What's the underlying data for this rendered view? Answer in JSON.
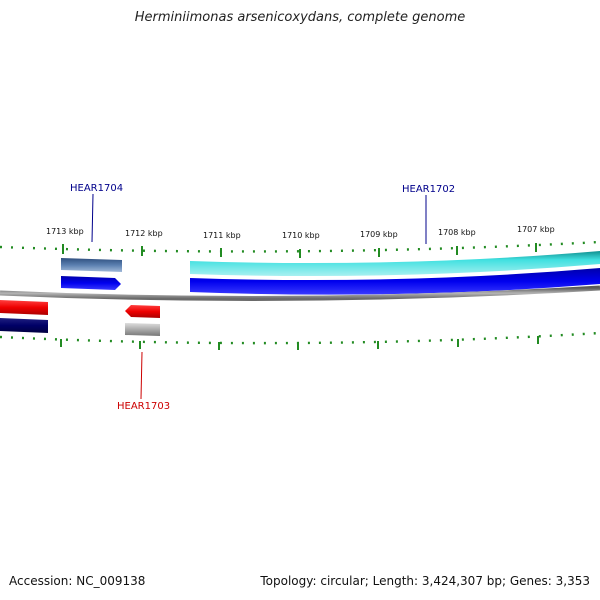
{
  "title": "Herminiimonas arsenicoxydans, complete genome",
  "footer": {
    "accession": "Accession: NC_009138",
    "summary": "Topology: circular; Length: 3,424,307 bp; Genes: 3,353"
  },
  "scale_labels": [
    "1713 kbp",
    "1712 kbp",
    "1711 kbp",
    "1710 kbp",
    "1709 kbp",
    "1708 kbp",
    "1707 kbp"
  ],
  "gene_labels": [
    {
      "name": "HEAR1704",
      "color": "#00008b"
    },
    {
      "name": "HEAR1702",
      "color": "#00008b"
    },
    {
      "name": "HEAR1703",
      "color": "#cc0000"
    }
  ],
  "colors": {
    "tick": "#228b22",
    "backbone": "#888888",
    "forward_blue": "#0000ee",
    "forward_cyan": "#20c8c8",
    "forward_steel": "#4a6fa0",
    "reverse_red": "#ee0000",
    "reverse_navy": "#000066",
    "reverse_grey": "#a8a8a8"
  }
}
